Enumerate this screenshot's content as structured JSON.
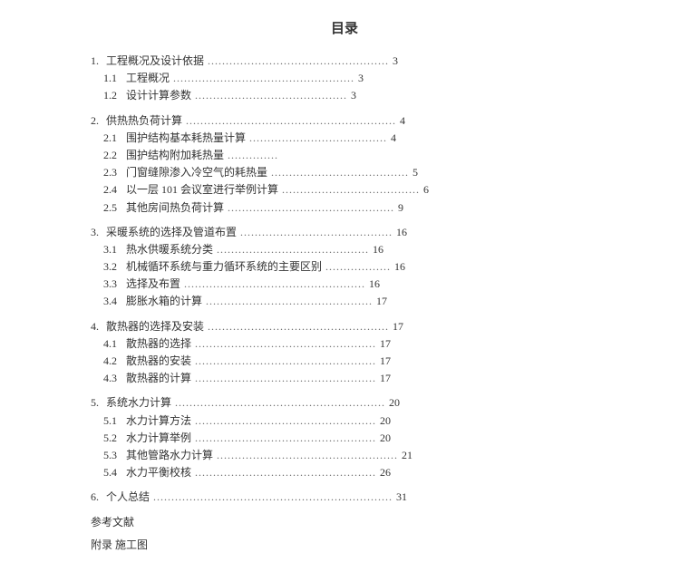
{
  "title": "目录",
  "sections": [
    {
      "num": "1.",
      "label": "工程概况及设计依据",
      "dots": "..................................................",
      "page": "3",
      "subs": [
        {
          "num": "1.1",
          "label": "工程概况",
          "dots": "..................................................",
          "page": "3"
        },
        {
          "num": "1.2",
          "label": "设计计算参数",
          "dots": "..........................................",
          "page": "3"
        }
      ]
    },
    {
      "num": "2.",
      "label": "供热热负荷计算",
      "dots": "..........................................................",
      "page": "4",
      "subs": [
        {
          "num": "2.1",
          "label": "围护结构基本耗热量计算",
          "dots": "......................................",
          "page": "4"
        },
        {
          "num": "2.2",
          "label": "围护结构附加耗热量",
          "dots": "..............",
          "page": ""
        },
        {
          "num": "2.3",
          "label": "门窗缝隙渗入冷空气的耗热量",
          "dots": "......................................",
          "page": "5"
        },
        {
          "num": "2.4",
          "label": "以一层 101 会议室进行举例计算",
          "dots": "......................................",
          "page": "6"
        },
        {
          "num": "2.5",
          "label": "其他房间热负荷计算",
          "dots": "..............................................",
          "page": "9"
        }
      ]
    },
    {
      "num": "3.",
      "label": "采暖系统的选择及管道布置",
      "dots": "..........................................",
      "page": "16",
      "subs": [
        {
          "num": "3.1",
          "label": "热水供暖系统分类",
          "dots": "..........................................",
          "page": "16"
        },
        {
          "num": "3.2",
          "label": "机械循环系统与重力循环系统的主要区别",
          "dots": "..................",
          "page": "16"
        },
        {
          "num": "3.3",
          "label": "选择及布置",
          "dots": "..................................................",
          "page": "16"
        },
        {
          "num": "3.4",
          "label": "膨胀水箱的计算",
          "dots": "..............................................",
          "page": "17"
        }
      ]
    },
    {
      "num": "4.",
      "label": "散热器的选择及安装",
      "dots": "..................................................",
      "page": "17",
      "subs": [
        {
          "num": "4.1",
          "label": "散热器的选择",
          "dots": "..................................................",
          "page": "17"
        },
        {
          "num": "4.2",
          "label": "散热器的安装",
          "dots": "..................................................",
          "page": "17"
        },
        {
          "num": "4.3",
          "label": "散热器的计算",
          "dots": "..................................................",
          "page": "17"
        }
      ]
    },
    {
      "num": "5.",
      "label": "系统水力计算",
      "dots": "..........................................................",
      "page": "20",
      "subs": [
        {
          "num": "5.1",
          "label": "水力计算方法",
          "dots": "..................................................",
          "page": "20"
        },
        {
          "num": "5.2",
          "label": "水力计算举例",
          "dots": "..................................................",
          "page": "20"
        },
        {
          "num": "5.3",
          "label": "其他管路水力计算",
          "dots": "..................................................",
          "page": "21"
        },
        {
          "num": "5.4",
          "label": "水力平衡校核",
          "dots": "..................................................",
          "page": "26"
        }
      ]
    },
    {
      "num": "6.",
      "label": "个人总结",
      "dots": "..................................................................",
      "page": "31",
      "subs": []
    }
  ],
  "extras": {
    "ref": "参考文献",
    "appendix": "附录  施工图"
  }
}
